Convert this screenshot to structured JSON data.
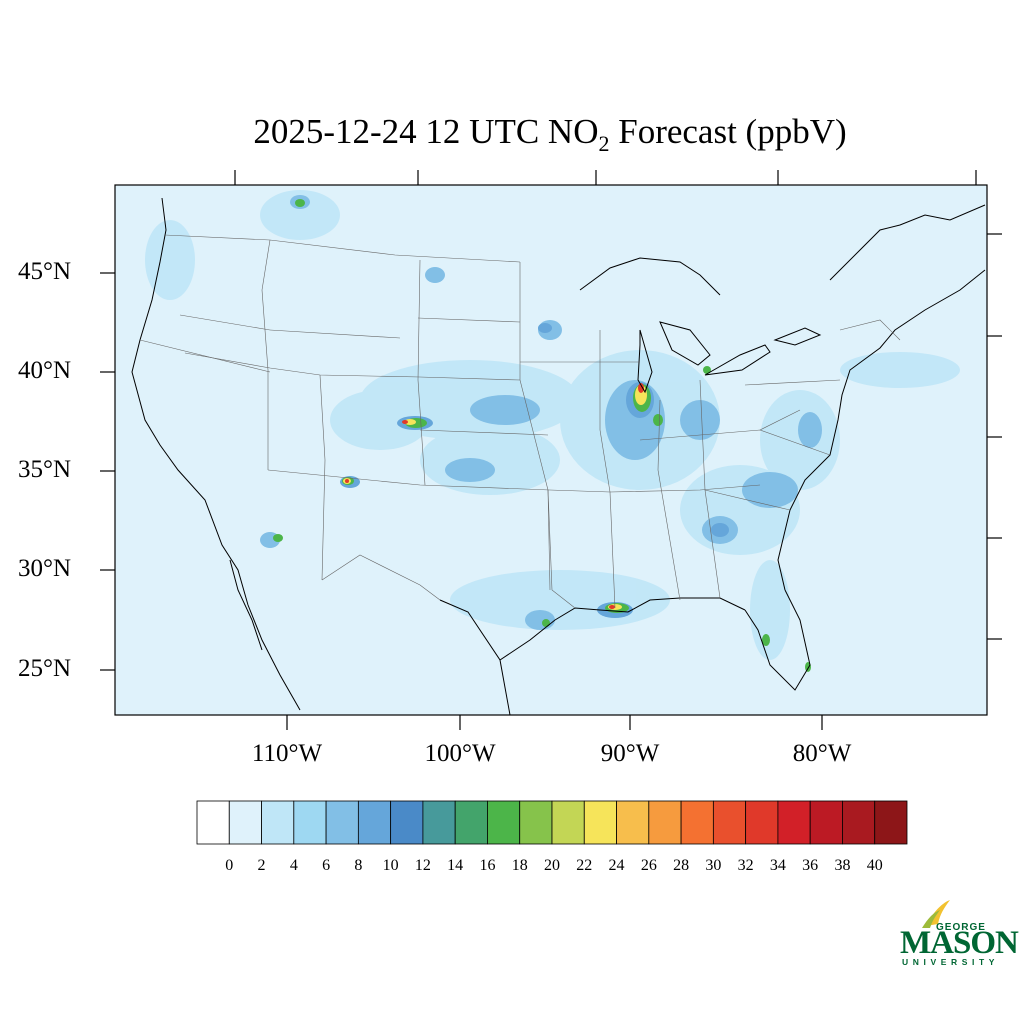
{
  "title": {
    "prefix": "2025-12-24 12 UTC NO",
    "subscript": "2",
    "suffix": " Forecast (ppbV)"
  },
  "map": {
    "lat_labels": [
      "45°N",
      "40°N",
      "35°N",
      "30°N",
      "25°N"
    ],
    "lon_labels": [
      "110°W",
      "100°W",
      "90°W",
      "80°W"
    ],
    "background_color": "#dff2fb"
  },
  "colorbar": {
    "colors": [
      "#ffffff",
      "#dff2fb",
      "#bfe6f7",
      "#9ed8f2",
      "#82bfe6",
      "#65a6da",
      "#4a8ac8",
      "#479a9b",
      "#43a46b",
      "#4cb549",
      "#86c34b",
      "#c3d655",
      "#f6e45a",
      "#f7be4c",
      "#f69b3e",
      "#f47131",
      "#e9502d",
      "#e0392a",
      "#d22028",
      "#bc1a24",
      "#a91a20",
      "#8d1618"
    ],
    "tick_labels": [
      "0",
      "2",
      "4",
      "6",
      "8",
      "10",
      "12",
      "14",
      "16",
      "18",
      "20",
      "22",
      "24",
      "26",
      "28",
      "30",
      "32",
      "34",
      "36",
      "38",
      "40"
    ]
  },
  "logo": {
    "line1": "GEORGE",
    "line2": "MASON",
    "line3": "UNIVERSITY",
    "color": "#006633",
    "accent": "#f2c230"
  }
}
